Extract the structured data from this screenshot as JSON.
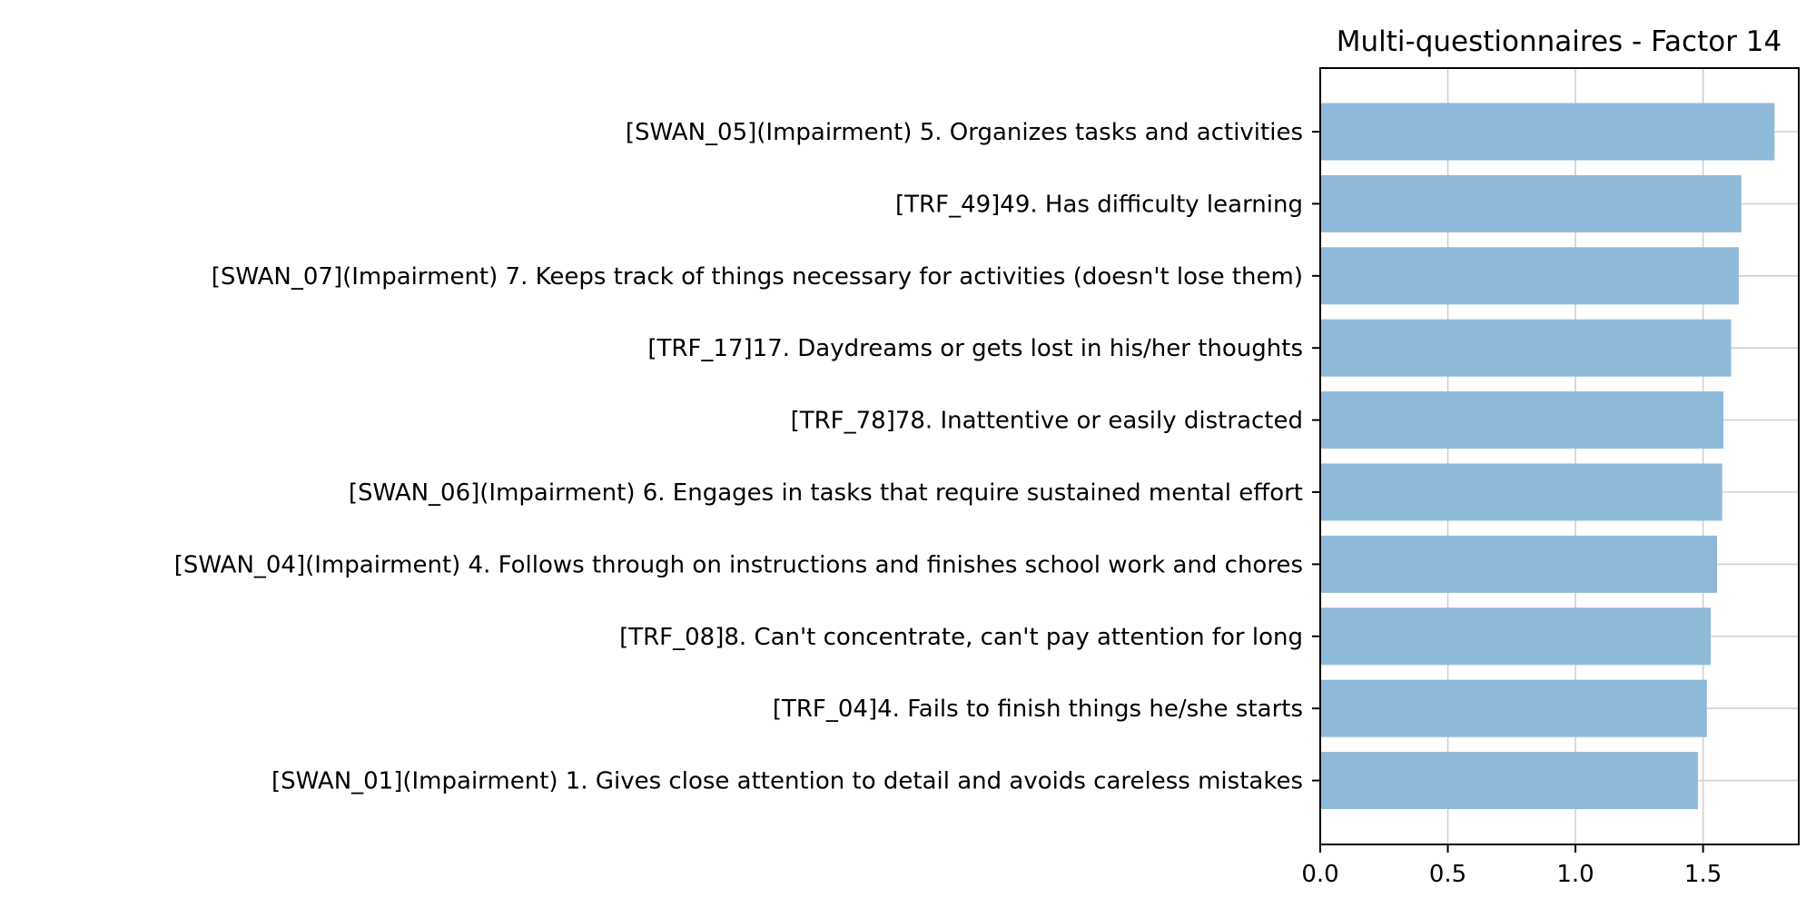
{
  "chart_data": {
    "type": "bar",
    "orientation": "horizontal",
    "title": "Multi-questionnaires - Factor 14",
    "xlabel": "",
    "ylabel": "",
    "xlim": [
      0,
      1.875
    ],
    "xticks": [
      0.0,
      0.5,
      1.0,
      1.5
    ],
    "xtick_labels": [
      "0.0",
      "0.5",
      "1.0",
      "1.5"
    ],
    "grid": true,
    "bar_color": "#8fb9d9",
    "categories": [
      "[SWAN_05](Impairment) 5. Organizes tasks and activities",
      "[TRF_49]49. Has difficulty learning",
      "[SWAN_07](Impairment) 7. Keeps track of things necessary for activities (doesn't lose them)",
      "[TRF_17]17. Daydreams or gets lost in his/her thoughts",
      "[TRF_78]78. Inattentive or easily distracted",
      "[SWAN_06](Impairment) 6. Engages in tasks that require sustained mental effort",
      "[SWAN_04](Impairment) 4. Follows through on instructions and finishes school work and chores",
      "[TRF_08]8. Can't concentrate, can't pay attention for long",
      "[TRF_04]4. Fails to finish things he/she starts",
      "[SWAN_01](Impairment) 1. Gives close attention to detail and avoids careless mistakes"
    ],
    "values": [
      1.78,
      1.65,
      1.64,
      1.61,
      1.58,
      1.575,
      1.555,
      1.53,
      1.515,
      1.48
    ]
  }
}
